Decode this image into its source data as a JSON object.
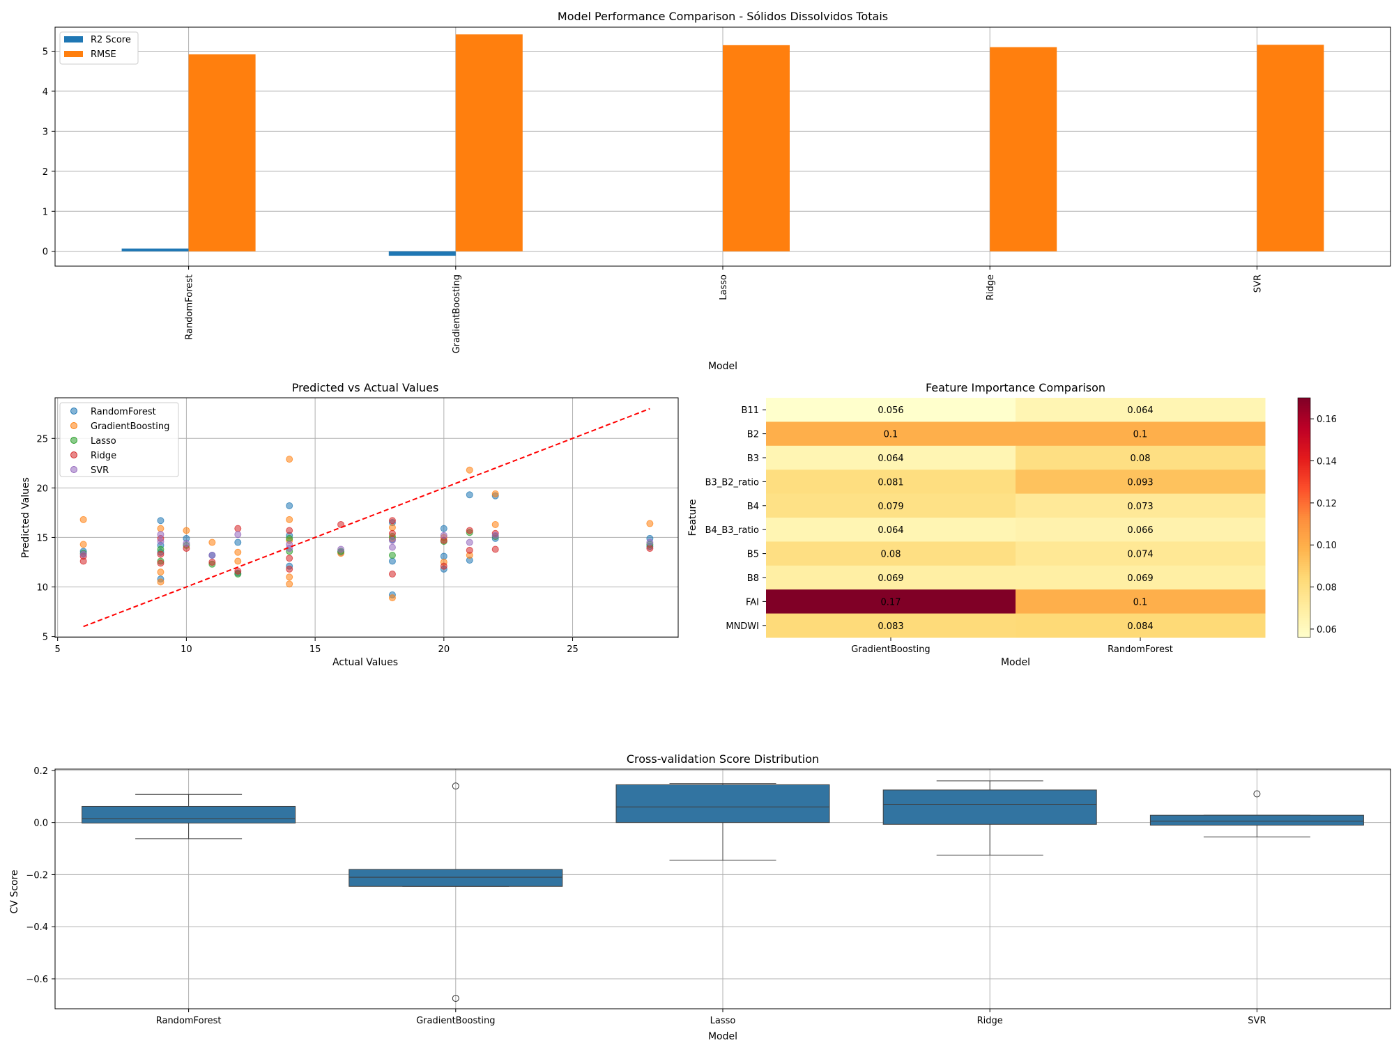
{
  "chart_data": [
    {
      "type": "bar",
      "title": "Model Performance Comparison - Sólidos Dissolvidos Totais",
      "xlabel": "Model",
      "ylabel": "",
      "categories": [
        "RandomForest",
        "GradientBoosting",
        "Lasso",
        "Ridge",
        "SVR"
      ],
      "series": [
        {
          "name": "R2 Score",
          "color": "#1f77b4",
          "values": [
            0.07,
            -0.11,
            0.0,
            0.0,
            0.0
          ]
        },
        {
          "name": "RMSE",
          "color": "#ff7f0e",
          "values": [
            4.92,
            5.42,
            5.15,
            5.1,
            5.16
          ]
        }
      ],
      "ylim": [
        -0.37,
        5.6
      ],
      "yticks": [
        0,
        1,
        2,
        3,
        4,
        5
      ],
      "grid": true,
      "legend": "top-left"
    },
    {
      "type": "scatter",
      "title": "Predicted vs Actual Values",
      "xlabel": "Actual Values",
      "ylabel": "Predicted Values",
      "xlim": [
        4.9,
        29.1
      ],
      "ylim": [
        4.9,
        29.1
      ],
      "xticks": [
        5,
        10,
        15,
        20,
        25
      ],
      "yticks": [
        5,
        10,
        15,
        20,
        25
      ],
      "grid": true,
      "legend": "top-left",
      "reference_line": {
        "x": [
          6,
          28
        ],
        "y": [
          6,
          28
        ],
        "color": "#ff0000",
        "style": "dashed"
      },
      "series": [
        {
          "name": "RandomForest",
          "color": "#1f77b4",
          "points": [
            [
              6,
              13.6
            ],
            [
              9,
              16.7
            ],
            [
              9,
              10.8
            ],
            [
              9,
              14.2
            ],
            [
              9,
              13.5
            ],
            [
              10,
              14.9
            ],
            [
              11,
              13.2
            ],
            [
              12,
              14.5
            ],
            [
              12,
              11.4
            ],
            [
              14,
              18.2
            ],
            [
              14,
              12.1
            ],
            [
              14,
              15.2
            ],
            [
              16,
              13.5
            ],
            [
              18,
              9.2
            ],
            [
              18,
              12.6
            ],
            [
              18,
              14.8
            ],
            [
              18,
              16.5
            ],
            [
              20,
              15.9
            ],
            [
              20,
              11.8
            ],
            [
              20,
              13.1
            ],
            [
              21,
              19.3
            ],
            [
              21,
              12.7
            ],
            [
              22,
              19.2
            ],
            [
              22,
              14.9
            ],
            [
              28,
              14.9
            ],
            [
              28,
              14.1
            ]
          ]
        },
        {
          "name": "GradientBoosting",
          "color": "#ff7f0e",
          "points": [
            [
              6,
              16.8
            ],
            [
              6,
              14.3
            ],
            [
              9,
              10.5
            ],
            [
              9,
              11.5
            ],
            [
              9,
              15.9
            ],
            [
              10,
              15.7
            ],
            [
              11,
              14.5
            ],
            [
              12,
              13.5
            ],
            [
              12,
              12.6
            ],
            [
              14,
              22.9
            ],
            [
              14,
              16.8
            ],
            [
              14,
              11.0
            ],
            [
              14,
              10.3
            ],
            [
              14,
              14.7
            ],
            [
              16,
              13.4
            ],
            [
              18,
              8.9
            ],
            [
              18,
              16.0
            ],
            [
              18,
              14.9
            ],
            [
              20,
              15.0
            ],
            [
              20,
              12.5
            ],
            [
              21,
              21.8
            ],
            [
              21,
              13.2
            ],
            [
              22,
              19.4
            ],
            [
              22,
              16.3
            ],
            [
              28,
              16.4
            ]
          ]
        },
        {
          "name": "Lasso",
          "color": "#2ca02c",
          "points": [
            [
              6,
              13.4
            ],
            [
              9,
              12.6
            ],
            [
              9,
              13.8
            ],
            [
              10,
              14.2
            ],
            [
              11,
              12.3
            ],
            [
              12,
              11.3
            ],
            [
              14,
              13.6
            ],
            [
              14,
              14.9
            ],
            [
              16,
              13.6
            ],
            [
              18,
              13.2
            ],
            [
              18,
              15.1
            ],
            [
              20,
              14.6
            ],
            [
              21,
              15.5
            ],
            [
              22,
              15.1
            ],
            [
              28,
              14.3
            ]
          ]
        },
        {
          "name": "Ridge",
          "color": "#d62728",
          "points": [
            [
              6,
              12.6
            ],
            [
              6,
              13.1
            ],
            [
              9,
              12.4
            ],
            [
              9,
              13.3
            ],
            [
              9,
              14.9
            ],
            [
              10,
              13.9
            ],
            [
              11,
              12.5
            ],
            [
              12,
              15.9
            ],
            [
              12,
              11.6
            ],
            [
              14,
              11.8
            ],
            [
              14,
              12.9
            ],
            [
              14,
              15.7
            ],
            [
              16,
              16.3
            ],
            [
              18,
              11.3
            ],
            [
              18,
              16.7
            ],
            [
              18,
              15.4
            ],
            [
              20,
              12.1
            ],
            [
              20,
              14.7
            ],
            [
              21,
              13.7
            ],
            [
              21,
              15.7
            ],
            [
              22,
              13.8
            ],
            [
              22,
              15.4
            ],
            [
              28,
              13.9
            ]
          ]
        },
        {
          "name": "SVR",
          "color": "#9467bd",
          "points": [
            [
              6,
              13.3
            ],
            [
              9,
              14.6
            ],
            [
              9,
              15.3
            ],
            [
              10,
              14.4
            ],
            [
              11,
              13.2
            ],
            [
              12,
              15.3
            ],
            [
              14,
              14.3
            ],
            [
              14,
              13.9
            ],
            [
              16,
              13.8
            ],
            [
              18,
              14.0
            ],
            [
              18,
              14.7
            ],
            [
              20,
              15.2
            ],
            [
              21,
              14.5
            ],
            [
              22,
              15.2
            ],
            [
              28,
              14.5
            ]
          ]
        }
      ]
    },
    {
      "type": "heatmap",
      "title": "Feature Importance Comparison",
      "xlabel": "Model",
      "ylabel": "Feature",
      "columns": [
        "GradientBoosting",
        "RandomForest"
      ],
      "rows": [
        "B11",
        "B2",
        "B3",
        "B3_B2_ratio",
        "B4",
        "B4_B3_ratio",
        "B5",
        "B8",
        "FAI",
        "MNDWI"
      ],
      "values": [
        [
          0.056,
          0.064
        ],
        [
          0.1,
          0.1
        ],
        [
          0.064,
          0.08
        ],
        [
          0.081,
          0.093
        ],
        [
          0.079,
          0.073
        ],
        [
          0.064,
          0.066
        ],
        [
          0.08,
          0.074
        ],
        [
          0.069,
          0.069
        ],
        [
          0.17,
          0.1
        ],
        [
          0.083,
          0.084
        ]
      ],
      "labels": [
        [
          "0.056",
          "0.064"
        ],
        [
          "0.1",
          "0.1"
        ],
        [
          "0.064",
          "0.08"
        ],
        [
          "0.081",
          "0.093"
        ],
        [
          "0.079",
          "0.073"
        ],
        [
          "0.064",
          "0.066"
        ],
        [
          "0.08",
          "0.074"
        ],
        [
          "0.069",
          "0.069"
        ],
        [
          "0.17",
          "0.1"
        ],
        [
          "0.083",
          "0.084"
        ]
      ],
      "colormap": "YlOrRd",
      "vmin": 0.056,
      "vmax": 0.17,
      "colorbar_ticks": [
        0.06,
        0.08,
        0.1,
        0.12,
        0.14,
        0.16
      ],
      "colorbar_tick_labels": [
        "0.06",
        "0.08",
        "0.10",
        "0.12",
        "0.14",
        "0.16"
      ]
    },
    {
      "type": "box",
      "title": "Cross-validation Score Distribution",
      "xlabel": "Model",
      "ylabel": "CV Score",
      "categories": [
        "RandomForest",
        "GradientBoosting",
        "Lasso",
        "Ridge",
        "SVR"
      ],
      "color": "#3274a1",
      "boxes": [
        {
          "whislo": -0.062,
          "q1": -0.002,
          "med": 0.015,
          "q3": 0.062,
          "whishi": 0.108,
          "fliers": []
        },
        {
          "whislo": -0.245,
          "q1": -0.245,
          "med": -0.21,
          "q3": -0.18,
          "whishi": -0.18,
          "fliers": [
            0.14,
            -0.675
          ]
        },
        {
          "whislo": -0.145,
          "q1": 0.0,
          "med": 0.06,
          "q3": 0.145,
          "whishi": 0.15,
          "fliers": []
        },
        {
          "whislo": -0.125,
          "q1": -0.007,
          "med": 0.07,
          "q3": 0.125,
          "whishi": 0.16,
          "fliers": []
        },
        {
          "whislo": -0.055,
          "q1": -0.01,
          "med": 0.005,
          "q3": 0.028,
          "whishi": 0.028,
          "fliers": [
            0.11
          ]
        }
      ],
      "ylim": [
        -0.715,
        0.205
      ],
      "yticks": [
        0.2,
        0.0,
        -0.2,
        -0.4,
        -0.6
      ],
      "ytick_labels": [
        "0.2",
        "0.0",
        "−0.2",
        "−0.4",
        "−0.6"
      ],
      "grid": true
    }
  ]
}
